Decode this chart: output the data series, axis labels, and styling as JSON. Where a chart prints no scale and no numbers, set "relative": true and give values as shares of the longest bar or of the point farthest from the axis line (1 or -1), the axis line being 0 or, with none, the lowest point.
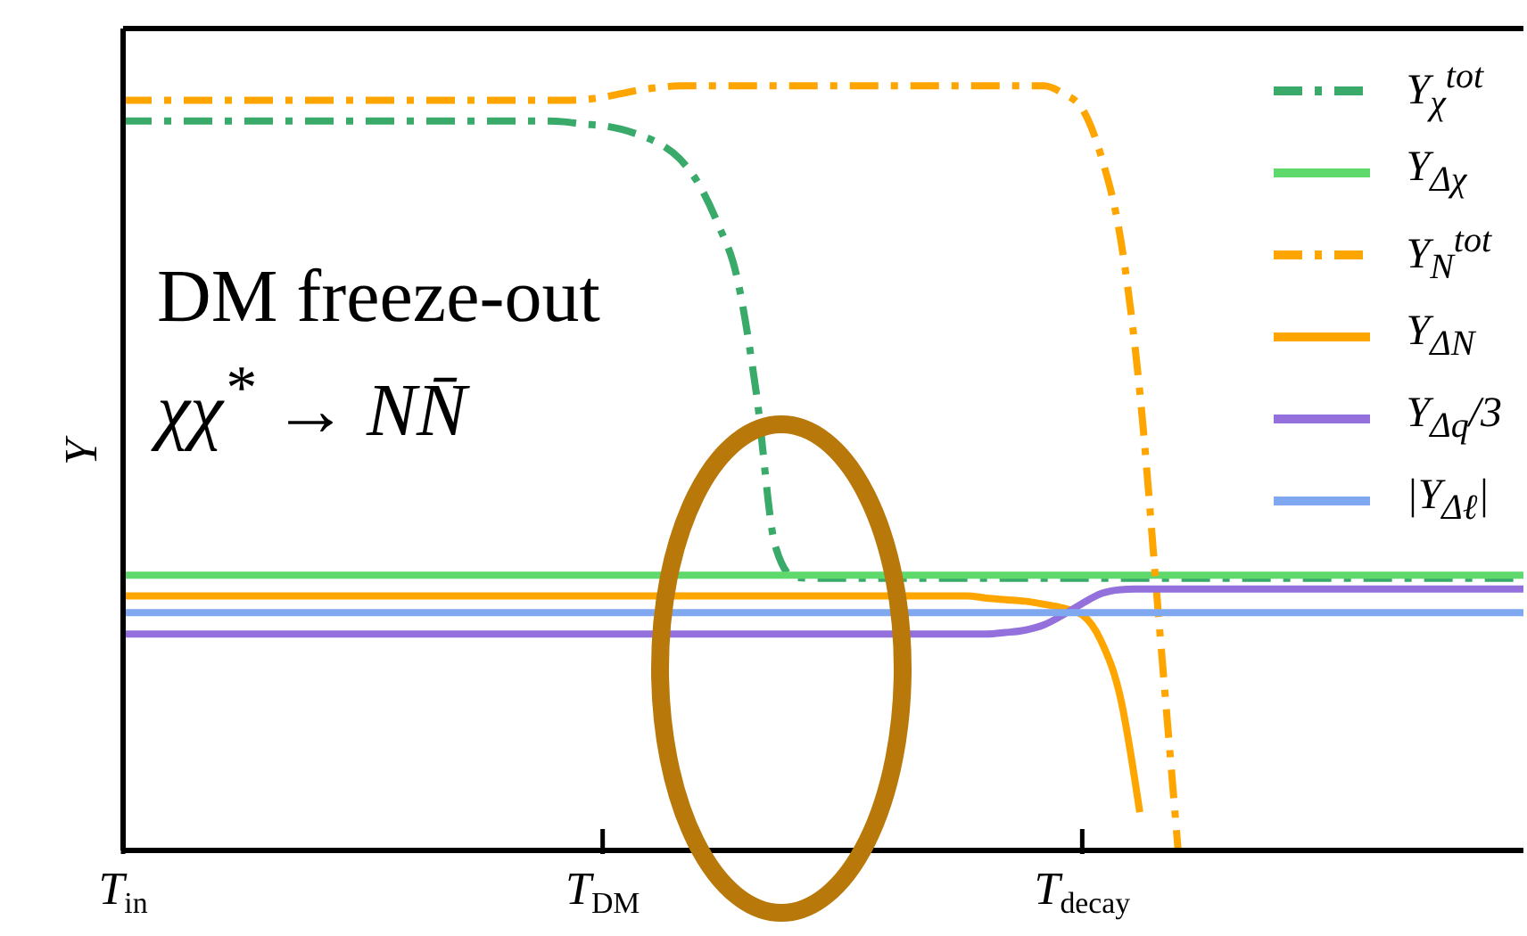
{
  "chart_data": {
    "type": "line",
    "relative": true,
    "ylabel": "Y",
    "legend": "top right",
    "categories": [
      "T$_{in}$",
      null,
      null,
      null,
      null,
      null,
      null,
      null,
      null,
      null,
      null,
      null,
      null,
      null,
      null,
      null,
      null,
      null,
      null,
      null,
      null,
      null,
      null,
      null,
      null,
      "T$_{DM}$",
      null,
      null,
      null,
      null,
      null,
      null,
      null,
      null,
      null,
      null,
      null,
      null,
      null,
      null,
      null,
      null,
      null,
      null,
      null,
      null,
      null,
      null,
      null,
      null,
      "T$_{decay}$",
      null,
      null,
      null,
      null,
      null,
      null,
      null,
      null,
      null,
      null,
      null,
      null,
      null,
      null,
      null,
      null,
      null,
      null,
      null,
      null,
      null,
      null,
      null
    ],
    "annotations": [
      "DM freeze-out",
      "χχ$^{*}$ → NN̄"
    ],
    "series": [
      {
        "name": "Y$_{χ}$$^{tot}$",
        "color": "#3aaa6a",
        "line_style": "dashed",
        "values": [
          0.954,
          0.954,
          0.954,
          0.954,
          0.954,
          0.954,
          0.954,
          0.954,
          0.954,
          0.954,
          0.954,
          0.954,
          0.954,
          0.954,
          0.954,
          0.954,
          0.954,
          0.954,
          0.954,
          0.954,
          0.954,
          0.954,
          0.954,
          0.953,
          0.95,
          0.948,
          0.943,
          0.935,
          0.924,
          0.905,
          0.872,
          0.82,
          0.75,
          0.6,
          0.398,
          0.357,
          0.356,
          0.356,
          0.356,
          0.356,
          0.356,
          0.356,
          0.356,
          0.356,
          0.356,
          0.356,
          0.356,
          0.356,
          0.356,
          0.356,
          0.356,
          0.356,
          0.356,
          0.356,
          0.356,
          0.356,
          0.356,
          0.356,
          0.356,
          0.356,
          0.356,
          0.356,
          0.356,
          0.356,
          0.356,
          0.356,
          0.356,
          0.356,
          0.356,
          0.356,
          0.356,
          0.356,
          0.356,
          0.356
        ]
      },
      {
        "name": "Y$_{Δχ}$",
        "color": "#5fd86c",
        "line_style": "solid",
        "values": [
          0.36,
          0.36,
          0.36,
          0.36,
          0.36,
          0.36,
          0.36,
          0.36,
          0.36,
          0.36,
          0.36,
          0.36,
          0.36,
          0.36,
          0.36,
          0.36,
          0.36,
          0.36,
          0.36,
          0.36,
          0.36,
          0.36,
          0.36,
          0.36,
          0.36,
          0.36,
          0.36,
          0.36,
          0.36,
          0.36,
          0.36,
          0.36,
          0.36,
          0.36,
          0.36,
          0.36,
          0.36,
          0.36,
          0.36,
          0.36,
          0.36,
          0.36,
          0.36,
          0.36,
          0.36,
          0.36,
          0.36,
          0.36,
          0.36,
          0.36,
          0.36,
          0.36,
          0.36,
          0.36,
          0.36,
          0.36,
          0.36,
          0.36,
          0.36,
          0.36,
          0.36,
          0.36,
          0.36,
          0.36,
          0.36,
          0.36,
          0.36,
          0.36,
          0.36,
          0.36,
          0.36,
          0.36,
          0.36,
          0.36
        ]
      },
      {
        "name": "Y$_{N}$$^{tot}$",
        "color": "#ffa500",
        "line_style": "dashed",
        "values": [
          0.981,
          0.981,
          0.981,
          0.981,
          0.981,
          0.981,
          0.981,
          0.981,
          0.981,
          0.981,
          0.981,
          0.981,
          0.981,
          0.981,
          0.981,
          0.981,
          0.981,
          0.981,
          0.981,
          0.981,
          0.981,
          0.981,
          0.981,
          0.981,
          0.982,
          0.985,
          0.99,
          0.995,
          0.998,
          1,
          1,
          1,
          1,
          1,
          1,
          1,
          1,
          1,
          1,
          1,
          1,
          1,
          1,
          1,
          1,
          1,
          1,
          1,
          1,
          0.99,
          0.97,
          0.907,
          0.8,
          0.6,
          0.3,
          0,
          null,
          null,
          null,
          null,
          null,
          null,
          null,
          null,
          null,
          null,
          null,
          null,
          null,
          null,
          null,
          null,
          null,
          null
        ]
      },
      {
        "name": "Y$_{ΔN}$",
        "color": "#ffa500",
        "line_style": "solid",
        "values": [
          0.333,
          0.333,
          0.333,
          0.333,
          0.333,
          0.333,
          0.333,
          0.333,
          0.333,
          0.333,
          0.333,
          0.333,
          0.333,
          0.333,
          0.333,
          0.333,
          0.333,
          0.333,
          0.333,
          0.333,
          0.333,
          0.333,
          0.333,
          0.333,
          0.333,
          0.333,
          0.333,
          0.333,
          0.333,
          0.333,
          0.333,
          0.333,
          0.333,
          0.333,
          0.333,
          0.333,
          0.333,
          0.333,
          0.333,
          0.333,
          0.333,
          0.333,
          0.333,
          0.333,
          0.333,
          0.33,
          0.328,
          0.326,
          0.322,
          0.317,
          0.308,
          0.273,
          0.199,
          0.05,
          null,
          null,
          null,
          null,
          null,
          null,
          null,
          null,
          null,
          null,
          null,
          null,
          null,
          null,
          null,
          null,
          null,
          null,
          null,
          null
        ]
      },
      {
        "name": "Y$_{Δq}$/3",
        "color": "#9370db",
        "line_style": "solid",
        "values": [
          0.283,
          0.283,
          0.283,
          0.283,
          0.283,
          0.283,
          0.283,
          0.283,
          0.283,
          0.283,
          0.283,
          0.283,
          0.283,
          0.283,
          0.283,
          0.283,
          0.283,
          0.283,
          0.283,
          0.283,
          0.283,
          0.283,
          0.283,
          0.283,
          0.283,
          0.283,
          0.283,
          0.283,
          0.283,
          0.283,
          0.283,
          0.283,
          0.283,
          0.283,
          0.283,
          0.283,
          0.283,
          0.283,
          0.283,
          0.283,
          0.283,
          0.283,
          0.283,
          0.283,
          0.283,
          0.283,
          0.285,
          0.288,
          0.295,
          0.308,
          0.323,
          0.336,
          0.341,
          0.342,
          0.342,
          0.342,
          0.342,
          0.342,
          0.342,
          0.342,
          0.342,
          0.342,
          0.342,
          0.342,
          0.342,
          0.342,
          0.342,
          0.342,
          0.342,
          0.342,
          0.342,
          0.342,
          0.342,
          0.342
        ]
      },
      {
        "name": "|Y$_{Δℓ}$|",
        "color": "#80a8f0",
        "line_style": "solid",
        "values": [
          0.311,
          0.311,
          0.311,
          0.311,
          0.311,
          0.311,
          0.311,
          0.311,
          0.311,
          0.311,
          0.311,
          0.311,
          0.311,
          0.311,
          0.311,
          0.311,
          0.311,
          0.311,
          0.311,
          0.311,
          0.311,
          0.311,
          0.311,
          0.311,
          0.311,
          0.311,
          0.311,
          0.311,
          0.311,
          0.311,
          0.311,
          0.311,
          0.311,
          0.311,
          0.311,
          0.311,
          0.311,
          0.311,
          0.311,
          0.311,
          0.311,
          0.311,
          0.311,
          0.311,
          0.311,
          0.311,
          0.311,
          0.311,
          0.311,
          0.311,
          0.311,
          0.311,
          0.311,
          0.311,
          0.311,
          0.311,
          0.311,
          0.311,
          0.311,
          0.311,
          0.311,
          0.311,
          0.311,
          0.311,
          0.311,
          0.311,
          0.311,
          0.311,
          0.311,
          0.311,
          0.311,
          0.311,
          0.311,
          0.311
        ]
      }
    ]
  }
}
